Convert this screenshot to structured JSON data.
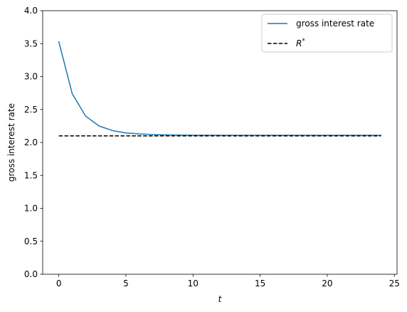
{
  "chart_data": {
    "type": "line",
    "xlabel": "t",
    "ylabel": "gross interest rate",
    "xlim": [
      -1.2,
      25.2
    ],
    "ylim": [
      0.0,
      4.0
    ],
    "xticks": [
      0,
      5,
      10,
      15,
      20,
      25
    ],
    "xtick_labels": [
      "0",
      "5",
      "10",
      "15",
      "20",
      "25"
    ],
    "yticks": [
      0.0,
      0.5,
      1.0,
      1.5,
      2.0,
      2.5,
      3.0,
      3.5,
      4.0
    ],
    "ytick_labels": [
      "0.0",
      "0.5",
      "1.0",
      "1.5",
      "2.0",
      "2.5",
      "3.0",
      "3.5",
      "4.0"
    ],
    "grid": false,
    "legend_position": "top-right",
    "series": [
      {
        "name": "gross interest rate",
        "color": "#1f77b4",
        "style": "solid",
        "x": [
          0,
          1,
          2,
          3,
          4,
          5,
          6,
          7,
          8,
          9,
          10,
          11,
          12,
          13,
          14,
          15,
          16,
          17,
          18,
          19,
          20,
          21,
          22,
          23,
          24
        ],
        "y": [
          3.53,
          2.74,
          2.4,
          2.25,
          2.18,
          2.145,
          2.13,
          2.12,
          2.115,
          2.112,
          2.111,
          2.111,
          2.11,
          2.11,
          2.11,
          2.11,
          2.11,
          2.11,
          2.11,
          2.11,
          2.11,
          2.11,
          2.11,
          2.11,
          2.11
        ]
      },
      {
        "name": "R*",
        "legend_base": "R",
        "legend_sup": "*",
        "color": "#000000",
        "style": "dashed",
        "x": [
          0,
          24
        ],
        "y": [
          2.1,
          2.1
        ]
      }
    ]
  }
}
